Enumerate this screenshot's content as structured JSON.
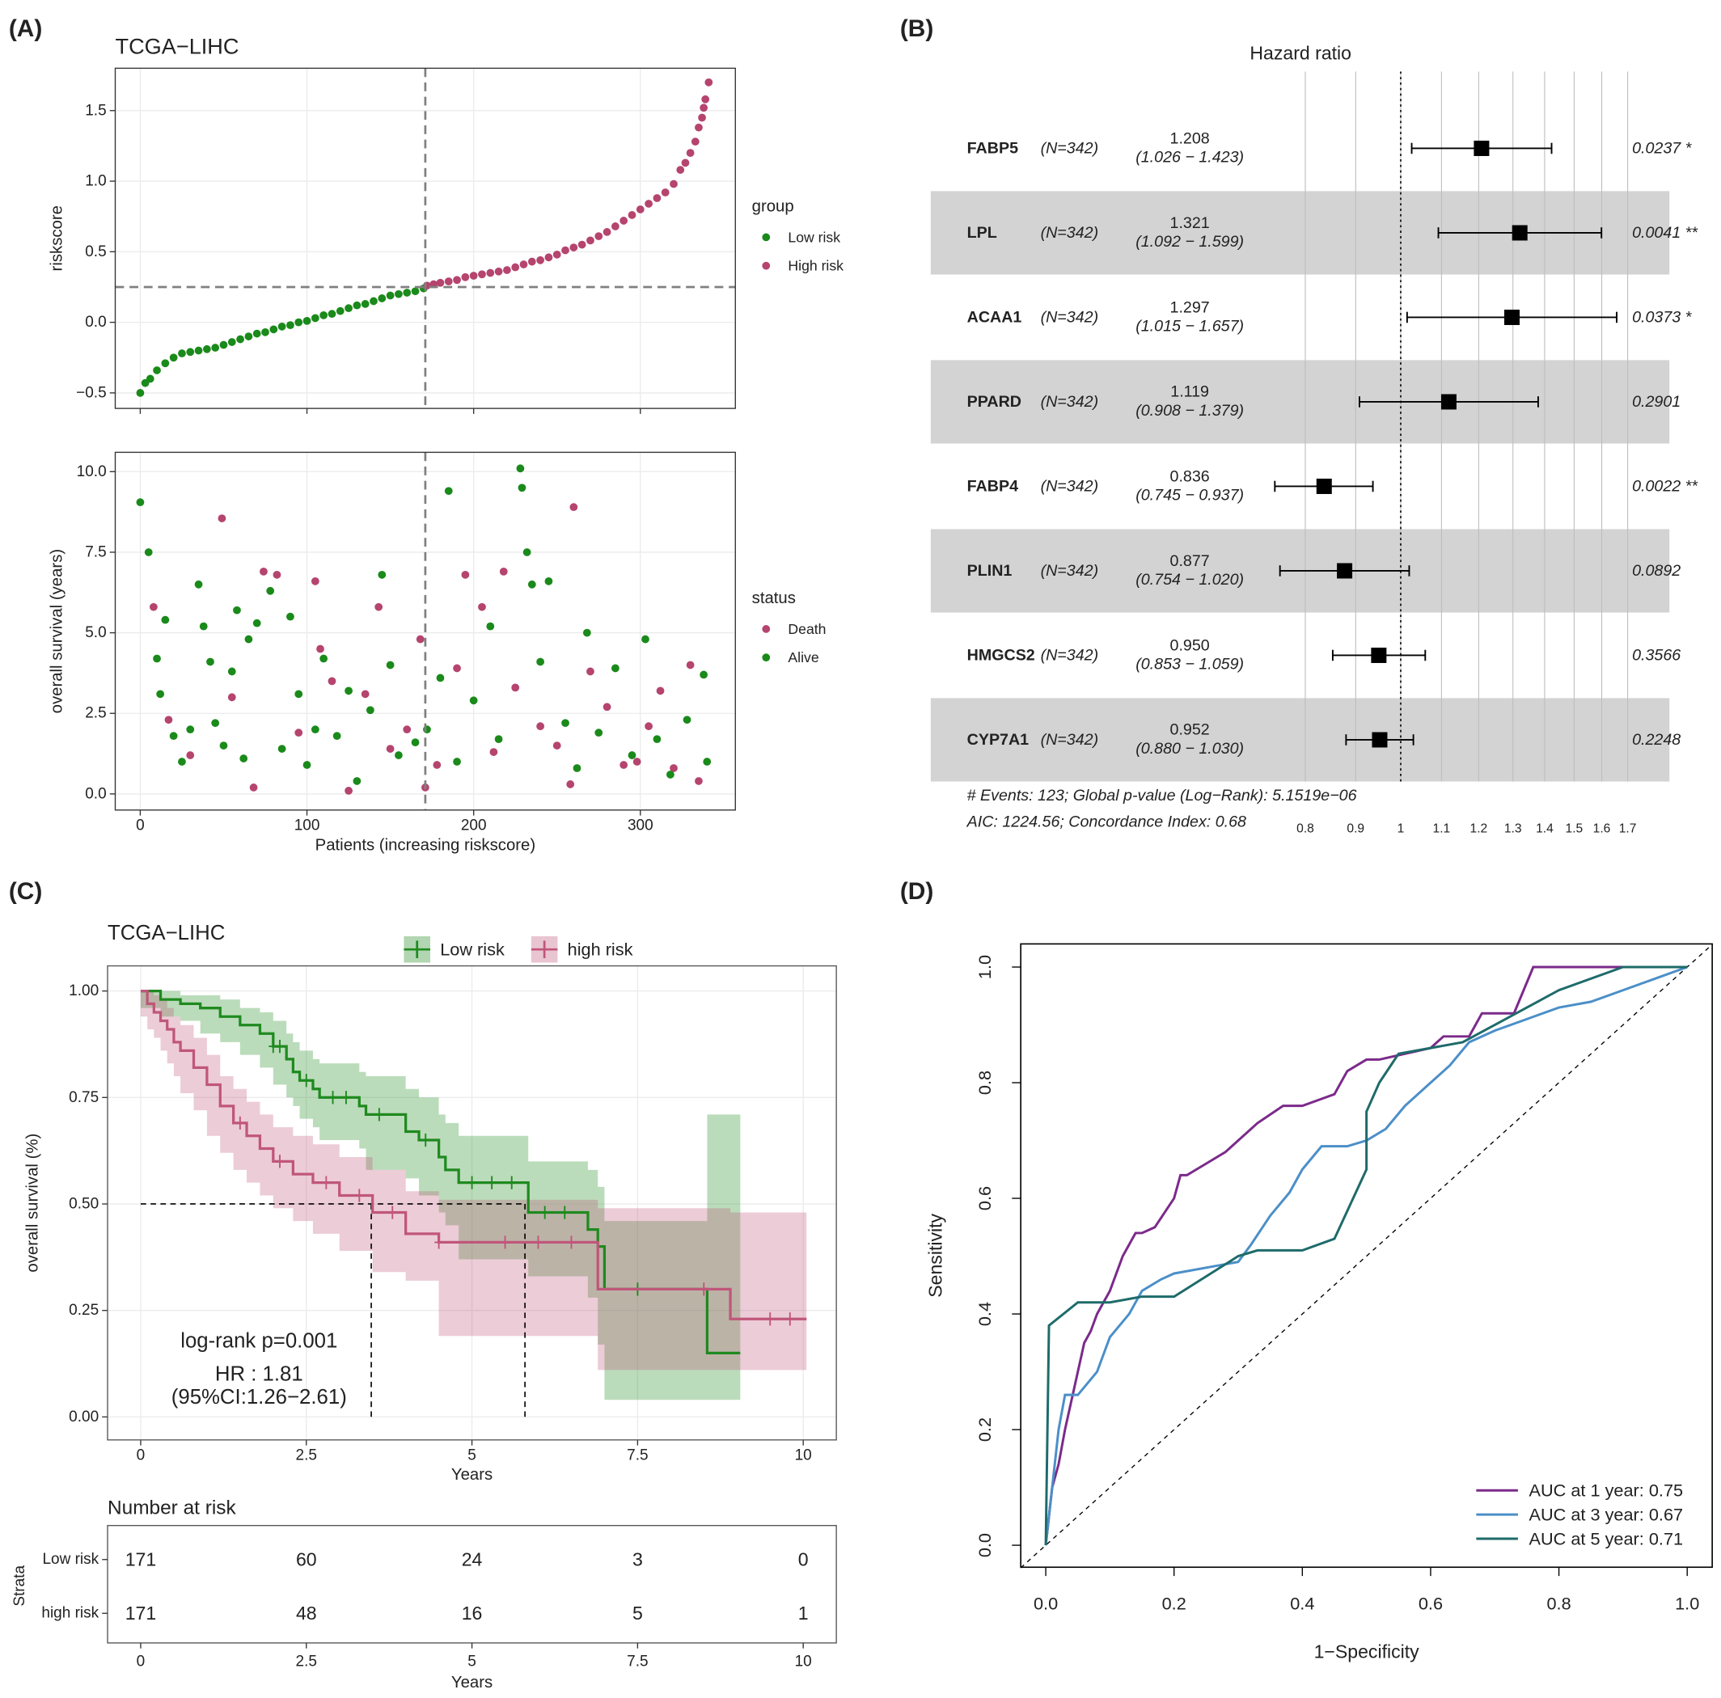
{
  "panel_labels": [
    "(A)",
    "(B)",
    "(C)",
    "(D)"
  ],
  "chart_data": [
    {
      "type": "scatter",
      "title": "TCGA−LIHC",
      "y_label": "riskscore",
      "xlim": [
        -15,
        357
      ],
      "ylim": [
        -0.61,
        1.8
      ],
      "yticks": [
        {
          "value": -0.5,
          "label": "−0.5"
        },
        {
          "value": 0,
          "label": "0.0"
        },
        0.5,
        {
          "value": 1,
          "label": "1.0"
        },
        1.5
      ],
      "grid": true,
      "cutoff_x": 171,
      "cutoff_y": 0.25,
      "legend_title": "group",
      "series": [
        {
          "name": "Low risk",
          "color": "#1a8a1a",
          "x": [
            0,
            3,
            6,
            10,
            15,
            20,
            25,
            30,
            35,
            40,
            45,
            50,
            55,
            60,
            65,
            70,
            75,
            80,
            85,
            90,
            95,
            100,
            105,
            110,
            115,
            120,
            125,
            130,
            135,
            140,
            145,
            150,
            155,
            160,
            165,
            170
          ],
          "values": [
            -0.5,
            -0.43,
            -0.4,
            -0.34,
            -0.29,
            -0.25,
            -0.22,
            -0.21,
            -0.2,
            -0.19,
            -0.18,
            -0.16,
            -0.14,
            -0.12,
            -0.1,
            -0.08,
            -0.07,
            -0.05,
            -0.03,
            -0.02,
            0,
            0.01,
            0.03,
            0.05,
            0.06,
            0.08,
            0.1,
            0.12,
            0.13,
            0.15,
            0.17,
            0.19,
            0.2,
            0.21,
            0.22,
            0.24
          ]
        },
        {
          "name": "High risk",
          "color": "#b5446e",
          "x": [
            172,
            176,
            180,
            185,
            190,
            195,
            200,
            205,
            210,
            215,
            220,
            225,
            230,
            235,
            240,
            245,
            250,
            255,
            260,
            265,
            270,
            275,
            280,
            285,
            290,
            295,
            300,
            305,
            310,
            315,
            320,
            324,
            327,
            330,
            333,
            335,
            337,
            338,
            339,
            341
          ],
          "values": [
            0.26,
            0.27,
            0.28,
            0.29,
            0.3,
            0.32,
            0.33,
            0.34,
            0.35,
            0.36,
            0.37,
            0.39,
            0.41,
            0.43,
            0.44,
            0.46,
            0.48,
            0.51,
            0.53,
            0.55,
            0.58,
            0.61,
            0.64,
            0.68,
            0.72,
            0.76,
            0.8,
            0.84,
            0.88,
            0.92,
            0.98,
            1.08,
            1.13,
            1.2,
            1.28,
            1.38,
            1.45,
            1.52,
            1.58,
            1.7
          ]
        }
      ]
    },
    {
      "type": "scatter",
      "x_label": "Patients (increasing riskscore)",
      "y_label": "overall survival (years)",
      "xlim": [
        -15,
        357
      ],
      "ylim": [
        -0.5,
        10.6
      ],
      "xticks": [
        0,
        100,
        200,
        300
      ],
      "yticks": [
        {
          "value": 0,
          "label": "0.0"
        },
        2.5,
        {
          "value": 5,
          "label": "5.0"
        },
        7.5,
        {
          "value": 10,
          "label": "10.0"
        }
      ],
      "grid": true,
      "cutoff_x": 171,
      "legend_title": "status",
      "series": [
        {
          "name": "Death",
          "color": "#b5446e",
          "x": [
            8,
            17,
            30,
            49,
            55,
            68,
            74,
            82,
            95,
            105,
            108,
            115,
            125,
            135,
            143,
            150,
            160,
            168,
            171,
            178,
            190,
            195,
            205,
            212,
            218,
            225,
            240,
            250,
            258,
            260,
            270,
            280,
            290,
            298,
            305,
            312,
            320,
            330,
            335
          ],
          "values": [
            5.8,
            2.3,
            1.2,
            8.55,
            3.0,
            0.2,
            6.9,
            6.8,
            1.9,
            6.6,
            4.5,
            3.5,
            0.1,
            3.1,
            5.8,
            1.4,
            2.0,
            4.8,
            0.2,
            0.9,
            3.9,
            6.8,
            5.8,
            1.3,
            6.9,
            3.3,
            2.1,
            1.5,
            0.3,
            8.9,
            3.8,
            2.7,
            0.9,
            1.0,
            2.1,
            3.2,
            0.8,
            4.0,
            0.4
          ]
        },
        {
          "name": "Alive",
          "color": "#1a8a1a",
          "x": [
            0,
            5,
            10,
            12,
            15,
            20,
            25,
            30,
            35,
            38,
            42,
            45,
            50,
            55,
            58,
            62,
            65,
            70,
            78,
            85,
            90,
            95,
            100,
            105,
            110,
            118,
            125,
            130,
            138,
            145,
            150,
            155,
            165,
            172,
            180,
            185,
            190,
            200,
            210,
            215,
            228,
            229,
            232,
            235,
            240,
            245,
            255,
            262,
            268,
            275,
            285,
            295,
            303,
            310,
            318,
            328,
            338,
            340
          ],
          "values": [
            9.05,
            7.5,
            4.2,
            3.1,
            5.4,
            1.8,
            1.0,
            2.0,
            6.5,
            5.2,
            4.1,
            2.2,
            1.5,
            3.8,
            5.7,
            1.1,
            4.8,
            5.3,
            6.3,
            1.4,
            5.5,
            3.1,
            0.9,
            2.0,
            4.2,
            1.8,
            3.2,
            0.4,
            2.6,
            6.8,
            4.0,
            1.2,
            1.6,
            2.0,
            3.6,
            9.4,
            1.0,
            2.9,
            5.2,
            1.7,
            10.1,
            9.5,
            7.5,
            6.5,
            4.1,
            6.6,
            2.2,
            0.8,
            5.0,
            1.9,
            3.9,
            1.2,
            4.8,
            1.7,
            0.6,
            2.3,
            3.7,
            1.0
          ]
        }
      ]
    },
    {
      "type": "forest",
      "title": "Hazard ratio",
      "log_scale": true,
      "xlim": [
        0.705,
        1.776
      ],
      "xticks": [
        0.8,
        0.9,
        1,
        1.1,
        1.2,
        1.3,
        1.4,
        1.5,
        1.6,
        1.7
      ],
      "reference": 1,
      "grid": true,
      "color": "#000000",
      "stripe_color": "#d3d3d3",
      "genes": [
        "FABP5",
        "LPL",
        "ACAA1",
        "PPARD",
        "FABP4",
        "PLIN1",
        "HMGCS2",
        "CYP7A1"
      ],
      "n_labels": [
        "(N=342)",
        "(N=342)",
        "(N=342)",
        "(N=342)",
        "(N=342)",
        "(N=342)",
        "(N=342)",
        "(N=342)"
      ],
      "hr": [
        1.208,
        1.321,
        1.297,
        1.119,
        0.836,
        0.877,
        0.95,
        0.952
      ],
      "hr_labels": [
        "1.208",
        "1.321",
        "1.297",
        "1.119",
        "0.836",
        "0.877",
        "0.950",
        "0.952"
      ],
      "ci_low": [
        1.026,
        1.092,
        1.015,
        0.908,
        0.745,
        0.754,
        0.853,
        0.88
      ],
      "ci_high": [
        1.423,
        1.599,
        1.657,
        1.379,
        0.937,
        1.02,
        1.059,
        1.03
      ],
      "ci_labels": [
        "(1.026 − 1.423)",
        "(1.092 − 1.599)",
        "(1.015 − 1.657)",
        "(0.908 − 1.379)",
        "(0.745 − 0.937)",
        "(0.754 − 1.020)",
        "(0.853 − 1.059)",
        "(0.880 − 1.030)"
      ],
      "p_labels": [
        "0.0237 *",
        "0.0041 **",
        "0.0373 *",
        "0.2901",
        "0.0022 **",
        "0.0892",
        "0.3566",
        "0.2248"
      ],
      "footer": [
        "# Events: 123; Global p-value (Log−Rank): 5.1519e−06",
        "AIC: 1224.56; Concordance Index: 0.68"
      ]
    },
    {
      "type": "km",
      "title": "TCGA−LIHC",
      "x_label": "Years",
      "y_label": "overall survival (%)",
      "xlim": [
        -0.5,
        10.5
      ],
      "ylim": [
        -0.054,
        1.059
      ],
      "xticks": [
        0,
        2.5,
        5,
        7.5,
        10
      ],
      "yticks": [
        {
          "value": 0,
          "label": "0.00"
        },
        {
          "value": 0.25,
          "label": "0.25"
        },
        {
          "value": 0.5,
          "label": "0.50"
        },
        {
          "value": 0.75,
          "label": "0.75"
        },
        {
          "value": 1,
          "label": "1.00"
        }
      ],
      "grid": true,
      "median_level": 0.5,
      "annotations": [
        "log-rank  p=0.001",
        "HR : 1.81",
        "(95%CI:1.26−2.61)"
      ],
      "series": [
        {
          "name": "Low risk",
          "color": "#1f8a1f",
          "x": [
            0,
            0.3,
            0.6,
            0.9,
            1.2,
            1.5,
            1.8,
            2.0,
            2.2,
            2.3,
            2.4,
            2.6,
            2.7,
            3.3,
            3.4,
            4.0,
            4.2,
            4.5,
            4.6,
            4.8,
            5.85,
            6.75,
            6.9,
            7.0,
            8.55,
            9.05
          ],
          "values": [
            1.0,
            0.98,
            0.97,
            0.96,
            0.94,
            0.92,
            0.9,
            0.87,
            0.84,
            0.81,
            0.79,
            0.77,
            0.75,
            0.73,
            0.71,
            0.67,
            0.65,
            0.61,
            0.58,
            0.55,
            0.48,
            0.44,
            0.4,
            0.3,
            0.15,
            0.15
          ],
          "lower": [
            1.0,
            0.96,
            0.94,
            0.93,
            0.9,
            0.88,
            0.85,
            0.82,
            0.78,
            0.75,
            0.73,
            0.7,
            0.68,
            0.65,
            0.63,
            0.58,
            0.56,
            0.52,
            0.48,
            0.45,
            0.37,
            0.33,
            0.28,
            0.17,
            0.04,
            0.04
          ],
          "upper": [
            1.0,
            1.0,
            0.99,
            0.99,
            0.98,
            0.96,
            0.95,
            0.93,
            0.9,
            0.88,
            0.86,
            0.84,
            0.83,
            0.81,
            0.8,
            0.77,
            0.75,
            0.71,
            0.69,
            0.66,
            0.6,
            0.58,
            0.54,
            0.46,
            0.71,
            0.71
          ],
          "censor": [
            2.0,
            2.1,
            2.5,
            2.9,
            3.1,
            3.6,
            4.3,
            5.0,
            5.3,
            5.6,
            6.1,
            6.4,
            7.5
          ],
          "median": 5.8
        },
        {
          "name": "high risk",
          "color": "#c0567a",
          "x": [
            0,
            0.1,
            0.2,
            0.3,
            0.4,
            0.5,
            0.6,
            0.8,
            1.0,
            1.2,
            1.4,
            1.6,
            1.8,
            2.0,
            2.3,
            2.6,
            3.0,
            3.5,
            4.0,
            4.5,
            6.9,
            8.9,
            10.05
          ],
          "values": [
            1.0,
            0.97,
            0.95,
            0.93,
            0.91,
            0.88,
            0.86,
            0.82,
            0.78,
            0.73,
            0.69,
            0.66,
            0.63,
            0.6,
            0.57,
            0.55,
            0.52,
            0.48,
            0.43,
            0.41,
            0.3,
            0.23,
            0.23
          ],
          "lower": [
            1.0,
            0.94,
            0.91,
            0.89,
            0.86,
            0.83,
            0.8,
            0.76,
            0.72,
            0.66,
            0.62,
            0.58,
            0.55,
            0.52,
            0.49,
            0.46,
            0.43,
            0.39,
            0.34,
            0.32,
            0.19,
            0.11,
            0.11
          ],
          "upper": [
            1.0,
            1.0,
            0.99,
            0.98,
            0.96,
            0.94,
            0.92,
            0.89,
            0.85,
            0.8,
            0.77,
            0.74,
            0.71,
            0.68,
            0.66,
            0.64,
            0.61,
            0.58,
            0.53,
            0.51,
            0.49,
            0.48,
            0.48
          ],
          "censor": [
            1.5,
            2.1,
            2.8,
            3.3,
            3.8,
            4.5,
            5.5,
            6.0,
            6.5,
            8.5,
            9.5,
            9.8
          ],
          "median": 3.48
        }
      ],
      "risk_table": {
        "title": "Number at risk",
        "y_label": "Strata",
        "x_label": "Years",
        "counts": [
          [
            171,
            60,
            24,
            3,
            0
          ],
          [
            171,
            48,
            16,
            5,
            1
          ]
        ]
      }
    },
    {
      "type": "line",
      "x_label": "1−Specificity",
      "y_label": "Sensitivity",
      "xlim": [
        -0.039,
        1.039
      ],
      "ylim": [
        -0.038,
        1.04
      ],
      "xticks": [
        {
          "value": 0,
          "label": "0.0"
        },
        0.2,
        0.4,
        0.6,
        0.8,
        {
          "value": 1,
          "label": "1.0"
        }
      ],
      "yticks": [
        {
          "value": 0,
          "label": "0.0"
        },
        0.2,
        0.4,
        0.6,
        0.8,
        {
          "value": 1,
          "label": "1.0"
        }
      ],
      "grid": false,
      "diagonal": true,
      "legend": "bottom-right",
      "series": [
        {
          "name": "AUC at 1 year: 0.75",
          "color": "#7b2a8a",
          "x": [
            0,
            0.005,
            0.01,
            0.02,
            0.03,
            0.04,
            0.05,
            0.06,
            0.07,
            0.08,
            0.09,
            0.1,
            0.11,
            0.12,
            0.13,
            0.14,
            0.15,
            0.17,
            0.2,
            0.21,
            0.22,
            0.25,
            0.28,
            0.3,
            0.33,
            0.37,
            0.4,
            0.45,
            0.47,
            0.5,
            0.52,
            0.6,
            0.62,
            0.66,
            0.68,
            0.73,
            0.76,
            0.8,
            1.0
          ],
          "values": [
            0,
            0.05,
            0.1,
            0.14,
            0.2,
            0.25,
            0.3,
            0.35,
            0.37,
            0.4,
            0.42,
            0.44,
            0.47,
            0.5,
            0.52,
            0.54,
            0.54,
            0.55,
            0.6,
            0.64,
            0.64,
            0.66,
            0.68,
            0.7,
            0.73,
            0.76,
            0.76,
            0.78,
            0.82,
            0.84,
            0.84,
            0.86,
            0.88,
            0.88,
            0.92,
            0.92,
            1.0,
            1.0,
            1.0
          ]
        },
        {
          "name": "AUC at 3 year: 0.67",
          "color": "#4b8fc8",
          "x": [
            0,
            0.01,
            0.02,
            0.03,
            0.05,
            0.08,
            0.1,
            0.13,
            0.15,
            0.18,
            0.2,
            0.25,
            0.3,
            0.32,
            0.35,
            0.38,
            0.4,
            0.43,
            0.47,
            0.5,
            0.53,
            0.56,
            0.6,
            0.63,
            0.66,
            0.7,
            0.75,
            0.8,
            0.85,
            0.9,
            0.95,
            1.0
          ],
          "values": [
            0,
            0.1,
            0.2,
            0.26,
            0.26,
            0.3,
            0.36,
            0.4,
            0.44,
            0.46,
            0.47,
            0.48,
            0.49,
            0.52,
            0.57,
            0.61,
            0.65,
            0.69,
            0.69,
            0.7,
            0.72,
            0.76,
            0.8,
            0.83,
            0.87,
            0.89,
            0.91,
            0.93,
            0.94,
            0.96,
            0.98,
            1.0
          ]
        },
        {
          "name": "AUC at 5 year: 0.71",
          "color": "#1e6b6a",
          "x": [
            0,
            0.005,
            0.05,
            0.1,
            0.15,
            0.2,
            0.3,
            0.33,
            0.4,
            0.45,
            0.5,
            0.5,
            0.52,
            0.55,
            0.6,
            0.65,
            0.7,
            0.75,
            0.8,
            0.9,
            1.0
          ],
          "values": [
            0,
            0.38,
            0.42,
            0.42,
            0.43,
            0.43,
            0.5,
            0.51,
            0.51,
            0.53,
            0.65,
            0.75,
            0.8,
            0.85,
            0.86,
            0.87,
            0.9,
            0.93,
            0.96,
            1.0,
            1.0
          ]
        }
      ]
    }
  ]
}
